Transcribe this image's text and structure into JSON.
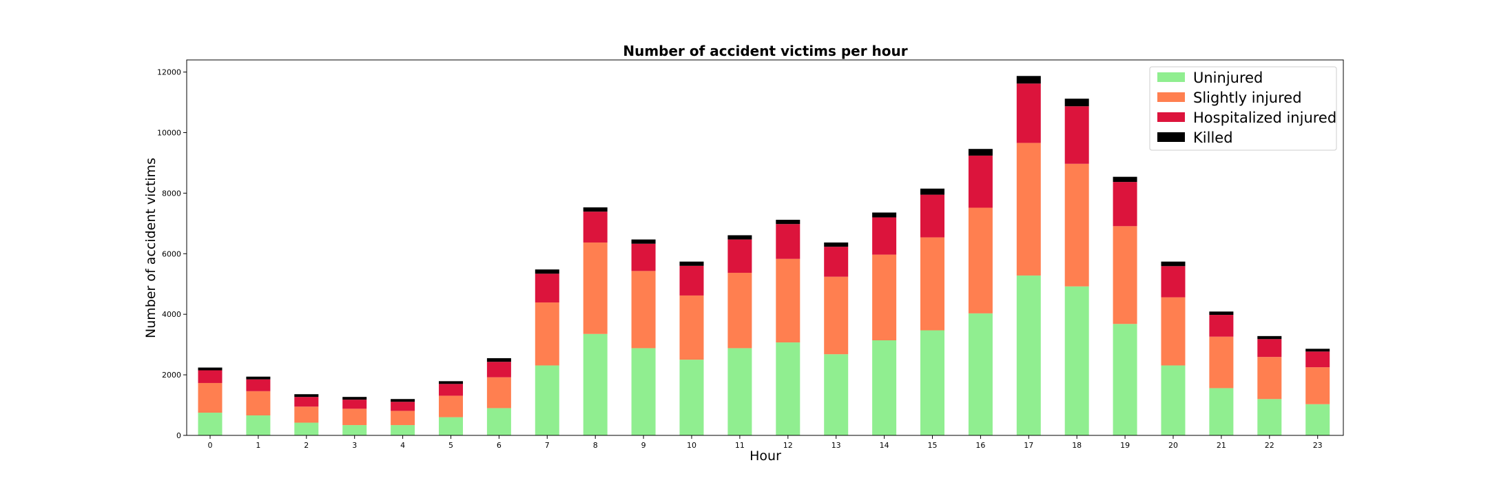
{
  "chart_data": {
    "type": "bar",
    "stacked": true,
    "title": "Number of accident victims per hour",
    "xlabel": "Hour",
    "ylabel": "Number of accident victims",
    "ylim": [
      0,
      12400
    ],
    "yticks": [
      0,
      2000,
      4000,
      6000,
      8000,
      10000,
      12000
    ],
    "grid": false,
    "legend_position": "top-right",
    "categories": [
      "0",
      "1",
      "2",
      "3",
      "4",
      "5",
      "6",
      "7",
      "8",
      "9",
      "10",
      "11",
      "12",
      "13",
      "14",
      "15",
      "16",
      "17",
      "18",
      "19",
      "20",
      "21",
      "22",
      "23"
    ],
    "series": [
      {
        "name": "Uninjured",
        "color": "#90ee90",
        "values": [
          750,
          660,
          420,
          340,
          340,
          600,
          900,
          2310,
          3350,
          2880,
          2500,
          2880,
          3070,
          2680,
          3140,
          3470,
          4030,
          5280,
          4920,
          3680,
          2310,
          1560,
          1200,
          1030
        ]
      },
      {
        "name": "Slightly injured",
        "color": "#ff7f50",
        "values": [
          980,
          800,
          530,
          540,
          470,
          710,
          1020,
          2080,
          3020,
          2550,
          2120,
          2490,
          2760,
          2560,
          2830,
          3070,
          3490,
          4380,
          4050,
          3230,
          2250,
          1700,
          1390,
          1220
        ]
      },
      {
        "name": "Hospitalized injured",
        "color": "#dc143c",
        "values": [
          420,
          390,
          320,
          300,
          300,
          390,
          510,
          950,
          1020,
          900,
          980,
          1100,
          1150,
          990,
          1230,
          1410,
          1720,
          1960,
          1900,
          1460,
          1030,
          720,
          590,
          520
        ]
      },
      {
        "name": "Killed",
        "color": "#000000",
        "values": [
          90,
          90,
          90,
          90,
          90,
          90,
          120,
          140,
          140,
          140,
          140,
          140,
          140,
          140,
          160,
          200,
          220,
          250,
          250,
          170,
          150,
          110,
          100,
          90
        ]
      }
    ]
  }
}
